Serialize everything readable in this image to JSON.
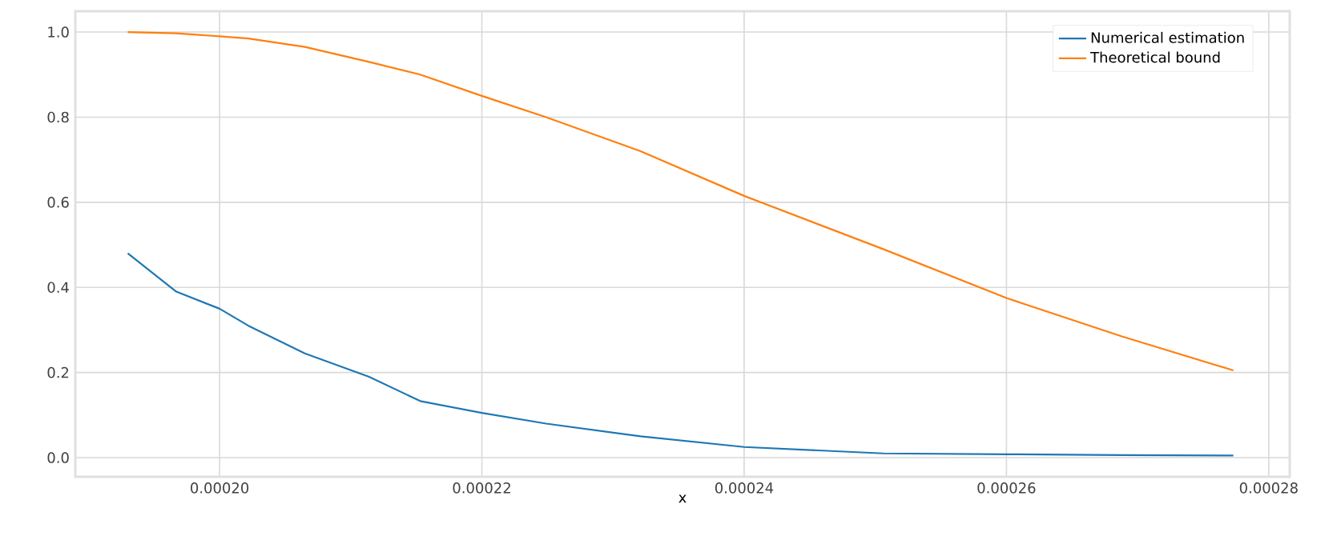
{
  "chart_data": {
    "type": "line",
    "xlabel": "x",
    "xlim": [
      0.000189,
      0.0002816
    ],
    "ylim": [
      -0.045,
      1.049
    ],
    "xticks": [
      {
        "value": 0.0002,
        "label": "0.00020"
      },
      {
        "value": 0.00022,
        "label": "0.00022"
      },
      {
        "value": 0.00024,
        "label": "0.00024"
      },
      {
        "value": 0.00026,
        "label": "0.00026"
      },
      {
        "value": 0.00028,
        "label": "0.00028"
      }
    ],
    "yticks": [
      {
        "value": 0,
        "label": "0.0"
      },
      {
        "value": 0.2,
        "label": "0.2"
      },
      {
        "value": 0.4,
        "label": "0.4"
      },
      {
        "value": 0.6,
        "label": "0.6"
      },
      {
        "value": 0.8,
        "label": "0.8"
      },
      {
        "value": 1.0,
        "label": "1.0"
      }
    ],
    "x": [
      0.000193,
      0.0001967,
      0.0002,
      0.0002022,
      0.0002065,
      0.0002114,
      0.0002153,
      0.00022,
      0.0002249,
      0.0002321,
      0.00024,
      0.0002506,
      0.00026,
      0.0002688,
      0.0002773
    ],
    "series": [
      {
        "name": "Numerical estimation",
        "color": "#1f77b4",
        "values": [
          0.48,
          0.39,
          0.35,
          0.31,
          0.245,
          0.19,
          0.133,
          0.105,
          0.08,
          0.05,
          0.025,
          0.01,
          0.008,
          0.006,
          0.005
        ]
      },
      {
        "name": "Theoretical bound",
        "color": "#ff7f0e",
        "values": [
          1.0,
          0.997,
          0.99,
          0.985,
          0.965,
          0.93,
          0.9,
          0.85,
          0.8,
          0.72,
          0.615,
          0.49,
          0.375,
          0.285,
          0.205
        ]
      }
    ],
    "grid": true,
    "legend": "top right",
    "marker": "none",
    "line_style": "solid"
  }
}
